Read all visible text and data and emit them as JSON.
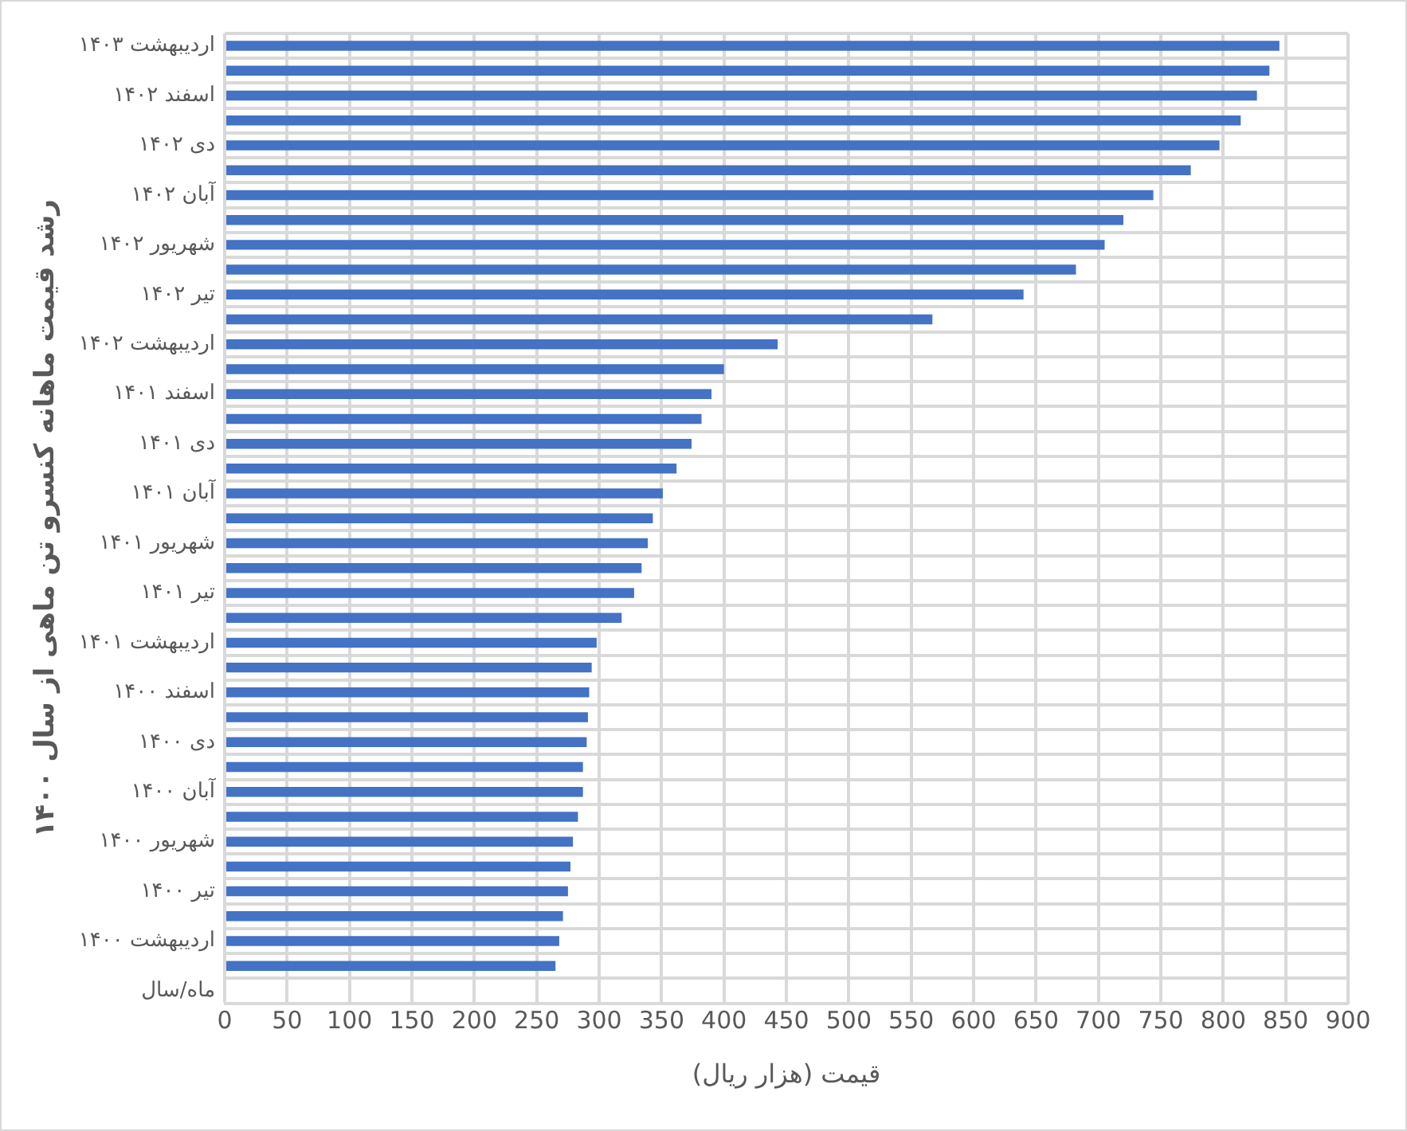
{
  "chart_data": {
    "type": "bar",
    "orientation": "horizontal",
    "ylabel": "رشد قیمت ماهانه کنسرو تن ماهی از سال ۱۴۰۰",
    "xlabel": "قیمت (هزار ریال)",
    "categories": [
      "اردیبهشت ۱۴۰۳",
      null,
      "اسفند ۱۴۰۲",
      null,
      "دی ۱۴۰۲",
      null,
      "آبان ۱۴۰۲",
      null,
      "شهریور ۱۴۰۲",
      null,
      "تیر ۱۴۰۲",
      null,
      "اردیبهشت ۱۴۰۲",
      null,
      "اسفند ۱۴۰۱",
      null,
      "دی ۱۴۰۱",
      null,
      "آبان ۱۴۰۱",
      null,
      "شهریور ۱۴۰۱",
      null,
      "تیر ۱۴۰۱",
      null,
      "اردیبهشت ۱۴۰۱",
      null,
      "اسفند ۱۴۰۰",
      null,
      "دی ۱۴۰۰",
      null,
      "آبان ۱۴۰۰",
      null,
      "شهریور ۱۴۰۰",
      null,
      "تیر ۱۴۰۰",
      null,
      "اردیبهشت ۱۴۰۰",
      null,
      "ماه/سال"
    ],
    "values": [
      845,
      837,
      827,
      814,
      797,
      774,
      744,
      720,
      705,
      682,
      640,
      567,
      443,
      400,
      390,
      382,
      374,
      362,
      351,
      343,
      339,
      334,
      328,
      318,
      298,
      294,
      292,
      291,
      290,
      287,
      287,
      283,
      279,
      277,
      275,
      271,
      268,
      265,
      null
    ],
    "color": "#4472c4",
    "xlim": [
      0,
      900
    ],
    "xticks": [
      0,
      50,
      100,
      150,
      200,
      250,
      300,
      350,
      400,
      450,
      500,
      550,
      600,
      650,
      700,
      750,
      800,
      850,
      900
    ],
    "grid": true,
    "legend": false
  }
}
